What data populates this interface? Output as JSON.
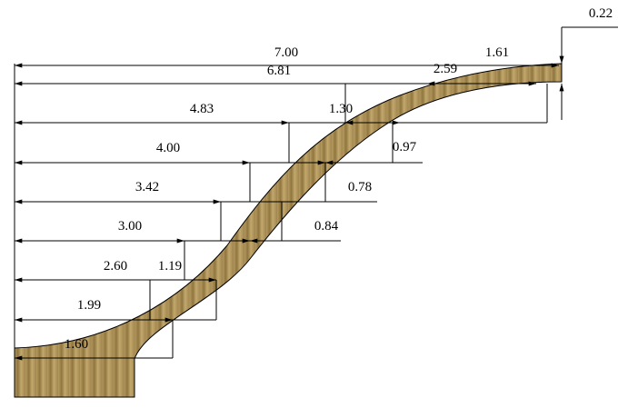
{
  "dimensions": [
    "7.00",
    "1.61",
    "0.22",
    "6.81",
    "2.59",
    "4.83",
    "1.30",
    "4.00",
    "0.97",
    "3.42",
    "0.78",
    "3.00",
    "0.84",
    "2.60",
    "1.19",
    "1.99",
    "1.60"
  ]
}
